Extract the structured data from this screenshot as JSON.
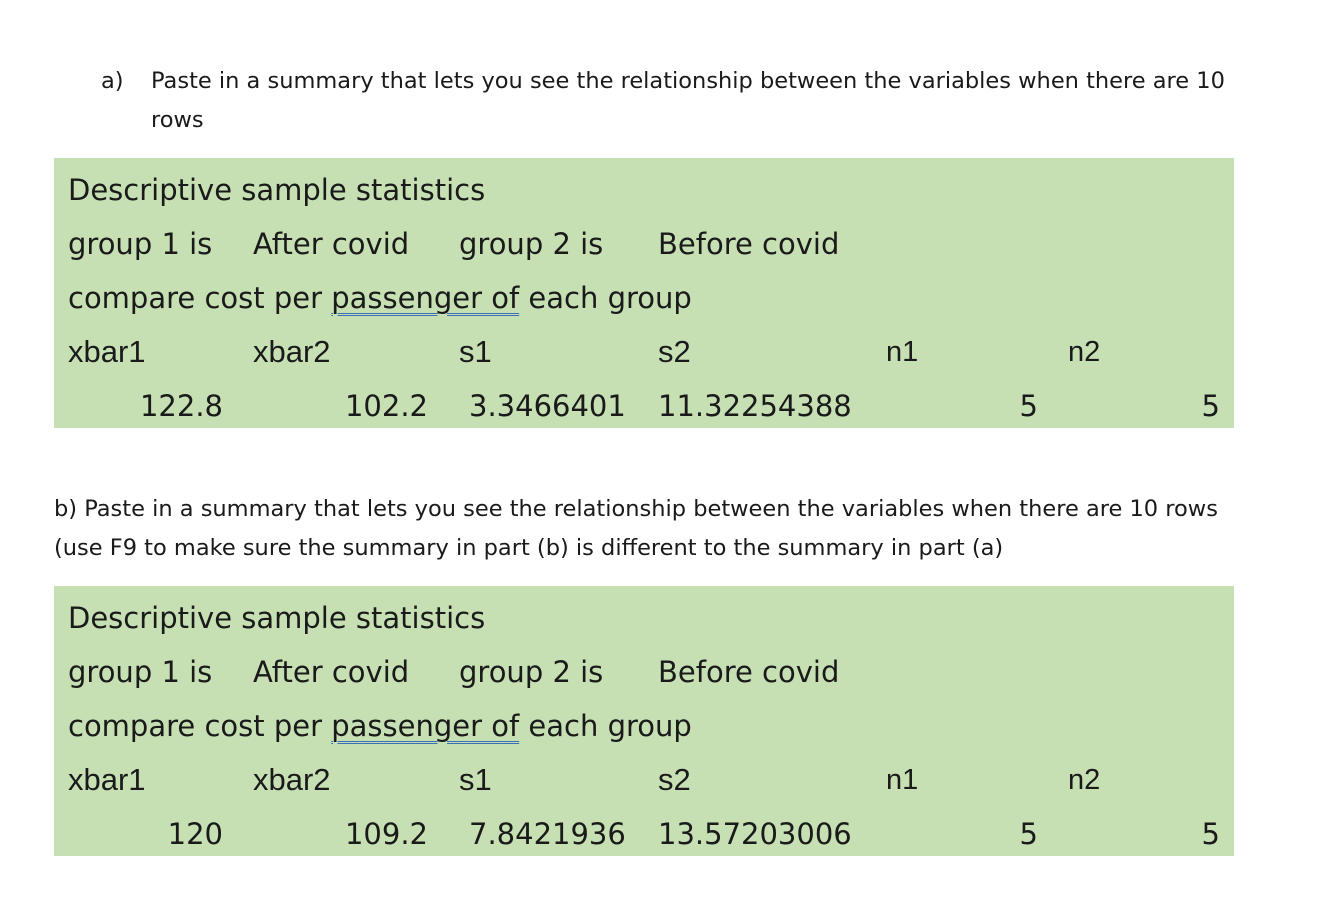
{
  "question_a": {
    "marker": "a)",
    "text": "Paste in a summary that lets you see the relationship between the variables when there are 10 rows"
  },
  "question_b": {
    "text": "b) Paste in a summary that lets you see the relationship between the variables when there are 10 rows (use F9 to make sure the summary in part (b) is different to the summary in part (a)"
  },
  "summaries": [
    {
      "title": "Descriptive sample statistics",
      "group1_label": "group 1 is",
      "group1_value": "After covid",
      "group2_label": "group 2 is",
      "group2_value": "Before covid",
      "compare_prefix": "compare cost per ",
      "compare_underlined": "passenger  of",
      "compare_suffix": " each group",
      "headers": [
        "xbar1",
        "xbar2",
        "s1",
        "s2",
        "n1",
        "n2"
      ],
      "values": [
        "122.8",
        "102.2",
        "3.3466401",
        "11.32254388",
        "5",
        "5"
      ]
    },
    {
      "title": "Descriptive sample statistics",
      "group1_label": "group 1 is",
      "group1_value": "After covid",
      "group2_label": "group 2 is",
      "group2_value": "Before covid",
      "compare_prefix": "compare cost per ",
      "compare_underlined": "passenger  of",
      "compare_suffix": " each group",
      "headers": [
        "xbar1",
        "xbar2",
        "s1",
        "s2",
        "n1",
        "n2"
      ],
      "values": [
        "120",
        "109.2",
        "7.8421936",
        "13.57203006",
        "5",
        "5"
      ]
    }
  ],
  "colors": {
    "box_fill": "#c6e0b4",
    "underline": "#3b6fb6"
  }
}
